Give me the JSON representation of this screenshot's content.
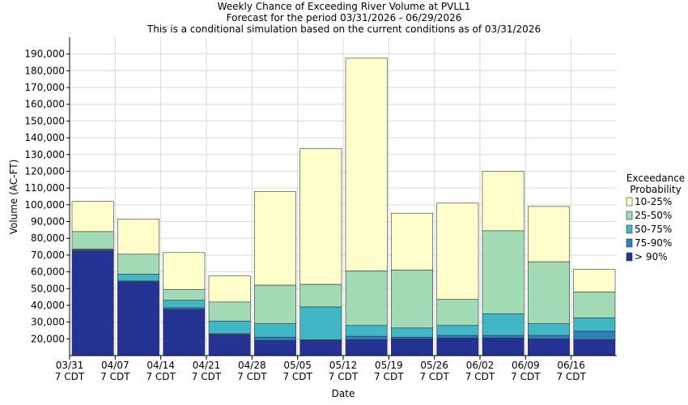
{
  "chart_data": {
    "type": "bar",
    "title": "Weekly Chance of Exceeding River Volume at PVLL1",
    "subtitle1": "Forecast for the period 03/31/2026 - 06/29/2026",
    "subtitle2": "This is a conditional simulation based on the current conditions as of 03/31/2026",
    "xlabel": "Date",
    "ylabel": "Volume (AC-FT)",
    "ylim": [
      10000,
      200000
    ],
    "y_ticks": [
      20000,
      30000,
      40000,
      50000,
      60000,
      70000,
      80000,
      90000,
      100000,
      110000,
      120000,
      130000,
      140000,
      150000,
      160000,
      170000,
      180000,
      190000
    ],
    "y_tick_labels": [
      "20,000",
      "30,000",
      "40,000",
      "50,000",
      "60,000",
      "70,000",
      "80,000",
      "90,000",
      "100,000",
      "110,000",
      "120,000",
      "130,000",
      "140,000",
      "150,000",
      "160,000",
      "170,000",
      "180,000",
      "190,000"
    ],
    "x_ticks": [
      {
        "line1": "03/31",
        "line2": "7 CDT"
      },
      {
        "line1": "04/07",
        "line2": "7 CDT"
      },
      {
        "line1": "04/14",
        "line2": "7 CDT"
      },
      {
        "line1": "04/21",
        "line2": "7 CDT"
      },
      {
        "line1": "04/28",
        "line2": "7 CDT"
      },
      {
        "line1": "05/05",
        "line2": "7 CDT"
      },
      {
        "line1": "05/12",
        "line2": "7 CDT"
      },
      {
        "line1": "05/19",
        "line2": "7 CDT"
      },
      {
        "line1": "05/26",
        "line2": "7 CDT"
      },
      {
        "line1": "06/02",
        "line2": "7 CDT"
      },
      {
        "line1": "06/09",
        "line2": "7 CDT"
      },
      {
        "line1": "06/16",
        "line2": "7 CDT"
      }
    ],
    "grid": true,
    "legend_position": "right",
    "legend_title": [
      "Exceedance",
      "Probability"
    ],
    "series": [
      {
        "name": "10-25%",
        "color": "#ffffcc",
        "tops": [
          102000,
          91500,
          71500,
          57500,
          108000,
          133500,
          187500,
          95000,
          101000,
          120000,
          99000,
          61500
        ]
      },
      {
        "name": "25-50%",
        "color": "#a1dab4",
        "tops": [
          84000,
          70500,
          49500,
          42000,
          52000,
          52500,
          60500,
          61000,
          43500,
          84500,
          66000,
          48000
        ]
      },
      {
        "name": "50-75%",
        "color": "#41b6c4",
        "tops": [
          73500,
          58500,
          43000,
          30500,
          29000,
          39000,
          28000,
          26500,
          28000,
          35000,
          29000,
          32500
        ]
      },
      {
        "name": "75-90%",
        "color": "#2c7fb8",
        "tops": [
          73000,
          54500,
          38500,
          23000,
          21000,
          19500,
          21500,
          21000,
          22000,
          22000,
          22000,
          24500
        ]
      },
      {
        "name": "> 90%",
        "color": "#253494",
        "tops": [
          72500,
          54000,
          37500,
          22500,
          19000,
          19000,
          19500,
          20000,
          20500,
          20500,
          20000,
          19500
        ]
      }
    ]
  }
}
